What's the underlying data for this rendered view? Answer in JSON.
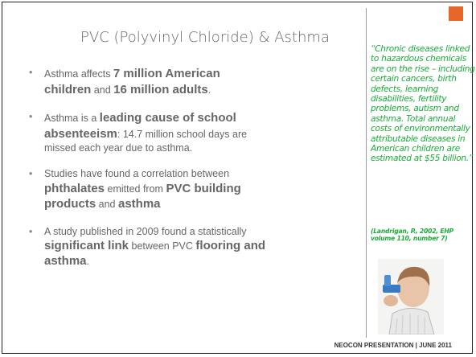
{
  "slide": {
    "title": "PVC (Polyvinyl Chloride) & Asthma",
    "bullets": [
      {
        "segments": [
          {
            "text": "Asthma affects ",
            "bold": false
          },
          {
            "text": "7 million American children",
            "bold": true
          },
          {
            "text": " and ",
            "bold": false
          },
          {
            "text": "16 million adults",
            "bold": true
          },
          {
            "text": ".",
            "bold": false
          }
        ]
      },
      {
        "segments": [
          {
            "text": "Asthma is a ",
            "bold": false
          },
          {
            "text": "leading cause of school absenteeism",
            "bold": true
          },
          {
            "text": ":  14.7 million school days are missed each year due to asthma.",
            "bold": false
          }
        ]
      },
      {
        "segments": [
          {
            "text": "Studies have found a correlation between ",
            "bold": false
          },
          {
            "text": "phthalates",
            "bold": true
          },
          {
            "text": " emitted from  ",
            "bold": false
          },
          {
            "text": "PVC building products",
            "bold": true
          },
          {
            "text": " and ",
            "bold": false
          },
          {
            "text": "asthma",
            "bold": true
          }
        ]
      },
      {
        "segments": [
          {
            "text": "A study published in 2009 found a statistically ",
            "bold": false
          },
          {
            "text": "significant link",
            "bold": true
          },
          {
            "text": " between PVC ",
            "bold": false
          },
          {
            "text": "flooring and asthma",
            "bold": true
          },
          {
            "text": ".",
            "bold": false
          }
        ]
      }
    ],
    "quote": "“Chronic diseases linked to hazardous chemicals are on the rise – including certain cancers, birth defects, learning disabilities, fertility problems, autism and asthma. Total annual costs of environmentally attributable diseases in American children are estimated at $55 billion.”",
    "citation": "(Landrigan, P., 2002, EHP volume 110, number 7)",
    "footer": "NEOCON PRESENTATION  |  JUNE 2011"
  }
}
